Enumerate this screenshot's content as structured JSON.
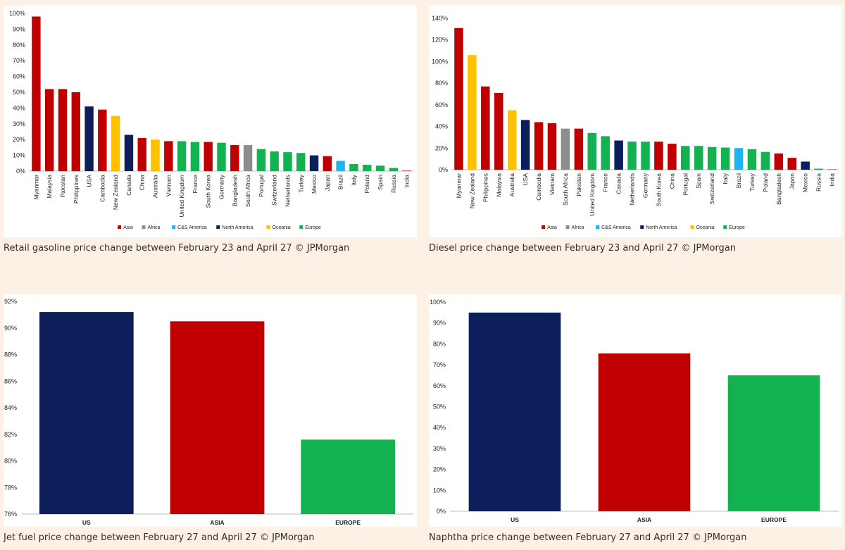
{
  "colors": {
    "Asia": "#c00000",
    "Africa": "#8c8c8c",
    "C&S America": "#1fb4ef",
    "North America": "#0c1f5a",
    "Oceania": "#ffc000",
    "Europe": "#12b250"
  },
  "captions": [
    "Retail gasoline price change between February 23 and April 27 © JPMorgan",
    "Diesel price change between February 23 and April 27 © JPMorgan",
    "Jet fuel price change between February 27 and April 27 © JPMorgan",
    "Naphtha price change between February 27 and April 27 © JPMorgan"
  ],
  "chart_data": [
    {
      "type": "bar",
      "ylim": [
        0,
        100
      ],
      "yticks": [
        0,
        10,
        20,
        30,
        40,
        50,
        60,
        70,
        80,
        90,
        100
      ],
      "legend": [
        "Asia",
        "Africa",
        "C&S America",
        "North America",
        "Oceania",
        "Europe"
      ],
      "legend_position": "bottom",
      "categories": [
        "Myanmar",
        "Malaysia",
        "Pakistan",
        "Philippines",
        "USA",
        "Cambodia",
        "New Zealand",
        "Canada",
        "China",
        "Australia",
        "Vietnam",
        "United Kingdom",
        "France",
        "South Korea",
        "Germany",
        "Bangladesh",
        "South Africa",
        "Portugal",
        "Switzerland",
        "Netherlands",
        "Turkey",
        "Mexico",
        "Japan",
        "Brazil",
        "Italy",
        "Poland",
        "Spain",
        "Russia",
        "India"
      ],
      "values": [
        98,
        52,
        52,
        50,
        41,
        39,
        35,
        23,
        21,
        20,
        19,
        19,
        18.5,
        18.5,
        18,
        16.5,
        16.5,
        14,
        12.5,
        12,
        11.5,
        10,
        9.5,
        6.5,
        4.5,
        4,
        3.5,
        2,
        0.3
      ],
      "regions": [
        "Asia",
        "Asia",
        "Asia",
        "Asia",
        "North America",
        "Asia",
        "Oceania",
        "North America",
        "Asia",
        "Oceania",
        "Asia",
        "Europe",
        "Europe",
        "Asia",
        "Europe",
        "Asia",
        "Africa",
        "Europe",
        "Europe",
        "Europe",
        "Europe",
        "North America",
        "Asia",
        "C&S America",
        "Europe",
        "Europe",
        "Europe",
        "Europe",
        "Asia"
      ]
    },
    {
      "type": "bar",
      "ylim": [
        0,
        140
      ],
      "yticks": [
        0,
        20,
        40,
        60,
        80,
        100,
        120,
        140
      ],
      "legend": [
        "Asia",
        "Africa",
        "C&S America",
        "North America",
        "Oceania",
        "Europe"
      ],
      "legend_position": "bottom",
      "categories": [
        "Myanmar",
        "New Zealand",
        "Philippines",
        "Malaysia",
        "Australia",
        "USA",
        "Cambodia",
        "Vietnam",
        "South Africa",
        "Pakistan",
        "United Kingdom",
        "France",
        "Canada",
        "Netherlands",
        "Germany",
        "South Korea",
        "China",
        "Portugal",
        "Spain",
        "Switzerland",
        "Italy",
        "Brazil",
        "Turkey",
        "Poland",
        "Bangladesh",
        "Japan",
        "Mexico",
        "Russia",
        "India"
      ],
      "values": [
        131,
        106,
        77,
        71,
        55,
        46,
        44,
        43,
        38,
        38,
        34,
        31,
        27,
        26,
        26,
        26,
        24,
        22,
        22,
        21,
        20.5,
        20,
        19,
        16.5,
        15,
        11,
        7.5,
        1,
        0.3
      ],
      "regions": [
        "Asia",
        "Oceania",
        "Asia",
        "Asia",
        "Oceania",
        "North America",
        "Asia",
        "Asia",
        "Africa",
        "Asia",
        "Europe",
        "Europe",
        "North America",
        "Europe",
        "Europe",
        "Asia",
        "Asia",
        "Europe",
        "Europe",
        "Europe",
        "Europe",
        "C&S America",
        "Europe",
        "Europe",
        "Asia",
        "Asia",
        "North America",
        "Europe",
        "Asia"
      ]
    },
    {
      "type": "bar",
      "ylim": [
        76,
        92
      ],
      "yticks": [
        76,
        78,
        80,
        82,
        84,
        86,
        88,
        90,
        92
      ],
      "categories": [
        "US",
        "ASIA",
        "EUROPE"
      ],
      "values": [
        91.2,
        90.5,
        81.6
      ],
      "regions": [
        "North America",
        "Asia",
        "Europe"
      ]
    },
    {
      "type": "bar",
      "ylim": [
        0,
        100
      ],
      "yticks": [
        0,
        10,
        20,
        30,
        40,
        50,
        60,
        70,
        80,
        90,
        100
      ],
      "categories": [
        "US",
        "ASIA",
        "EUROPE"
      ],
      "values": [
        95,
        75.5,
        65
      ],
      "regions": [
        "North America",
        "Asia",
        "Europe"
      ]
    }
  ]
}
